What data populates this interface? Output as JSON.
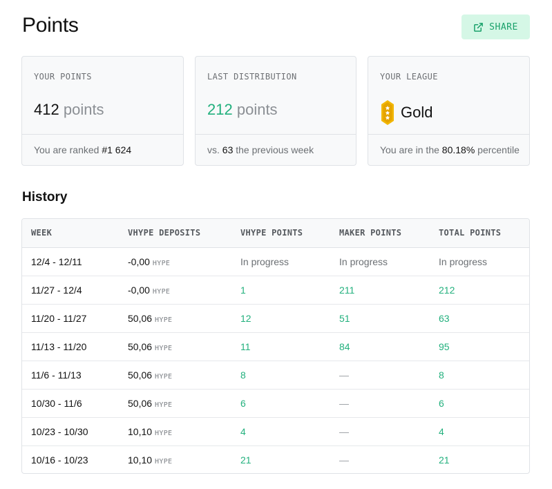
{
  "page": {
    "title": "Points"
  },
  "share": {
    "label": "SHARE",
    "icon": "external-link-icon"
  },
  "cards": {
    "your_points": {
      "caption": "YOUR POINTS",
      "value": "412",
      "unit": "points",
      "foot_prefix": "You are ranked ",
      "foot_value": "#1 624"
    },
    "last_distribution": {
      "caption": "LAST DISTRIBUTION",
      "value": "212",
      "unit": "points",
      "foot_prefix": "vs. ",
      "foot_value": "63",
      "foot_suffix": " the previous week"
    },
    "league": {
      "caption": "YOUR LEAGUE",
      "value": "Gold",
      "icon": "gold-league-badge-icon",
      "foot_prefix": "You are in the ",
      "foot_value": "80.18%",
      "foot_suffix": " percentile"
    }
  },
  "history": {
    "title": "History",
    "columns": [
      "WEEK",
      "VHYPE DEPOSITS",
      "VHYPE POINTS",
      "MAKER POINTS",
      "TOTAL POINTS"
    ],
    "currency": "HYPE",
    "rows": [
      {
        "week": "12/4 - 12/11",
        "deposit": "-0,00",
        "vhype_points": "In progress",
        "maker_points": "In progress",
        "total_points": "In progress"
      },
      {
        "week": "11/27 - 12/4",
        "deposit": "-0,00",
        "vhype_points": "1",
        "maker_points": "211",
        "total_points": "212"
      },
      {
        "week": "11/20 - 11/27",
        "deposit": "50,06",
        "vhype_points": "12",
        "maker_points": "51",
        "total_points": "63"
      },
      {
        "week": "11/13 - 11/20",
        "deposit": "50,06",
        "vhype_points": "11",
        "maker_points": "84",
        "total_points": "95"
      },
      {
        "week": "11/6 - 11/13",
        "deposit": "50,06",
        "vhype_points": "8",
        "maker_points": "—",
        "total_points": "8"
      },
      {
        "week": "10/30 - 11/6",
        "deposit": "50,06",
        "vhype_points": "6",
        "maker_points": "—",
        "total_points": "6"
      },
      {
        "week": "10/23 - 10/30",
        "deposit": "10,10",
        "vhype_points": "4",
        "maker_points": "—",
        "total_points": "4"
      },
      {
        "week": "10/16 - 10/23",
        "deposit": "10,10",
        "vhype_points": "21",
        "maker_points": "—",
        "total_points": "21"
      }
    ]
  },
  "colors": {
    "accent_green": "#22b07d",
    "share_bg": "#d5f7e6",
    "gold": "#f2b705"
  }
}
